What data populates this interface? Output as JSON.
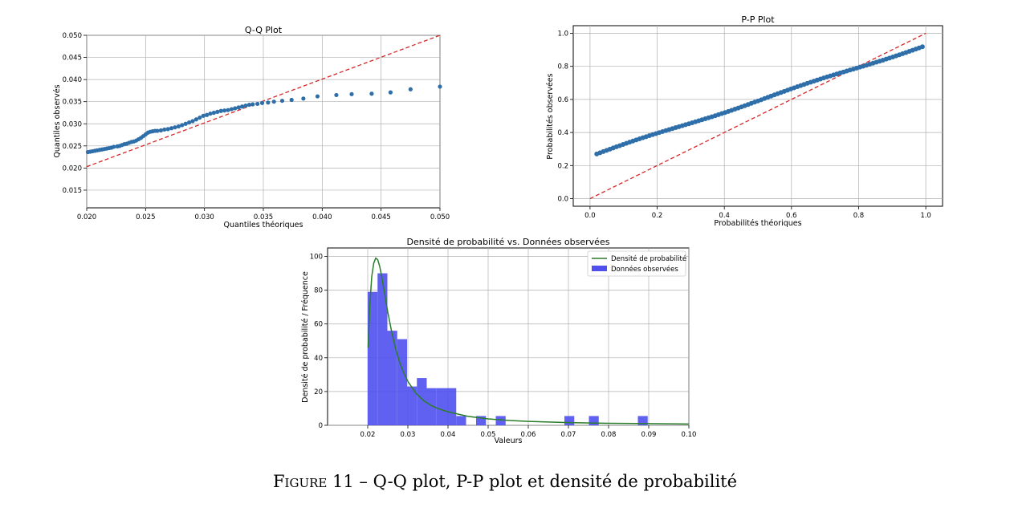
{
  "caption": {
    "label": "Figure 11",
    "separator": " – ",
    "text": "Q-Q plot, P-P plot et densité de probabilité"
  },
  "colors": {
    "points": "#2f6fa9",
    "reference_line": "#d62728",
    "histogram": "#5050ef",
    "density_curve": "#2a7d2a",
    "grid": "#b0b0b0"
  },
  "chart_data": [
    {
      "type": "scatter",
      "title": "Q-Q Plot",
      "xlabel": "Quantiles théoriques",
      "ylabel": "Quantiles observés",
      "xlim": [
        0.02,
        0.05
      ],
      "ylim": [
        0.011,
        0.05
      ],
      "xticks": [
        "0.020",
        "0.025",
        "0.030",
        "0.035",
        "0.040",
        "0.045",
        "0.050"
      ],
      "yticks": [
        "0.015",
        "0.020",
        "0.025",
        "0.030",
        "0.035",
        "0.040",
        "0.045",
        "0.050"
      ],
      "ytick_values": [
        0.015,
        0.02,
        0.025,
        0.03,
        0.035,
        0.04,
        0.045,
        0.05
      ],
      "grid": true,
      "reference_line": {
        "style": "dashed",
        "from": [
          0.02,
          0.0203
        ],
        "to": [
          0.05,
          0.05
        ]
      },
      "x": [
        0.0201,
        0.0203,
        0.0205,
        0.0207,
        0.0209,
        0.0211,
        0.0213,
        0.0215,
        0.0217,
        0.0219,
        0.0221,
        0.0223,
        0.0226,
        0.0228,
        0.023,
        0.0232,
        0.0234,
        0.0236,
        0.0238,
        0.024,
        0.0242,
        0.0244,
        0.0246,
        0.0248,
        0.025,
        0.0252,
        0.0254,
        0.0256,
        0.0258,
        0.026,
        0.0263,
        0.0266,
        0.0269,
        0.0272,
        0.0275,
        0.0278,
        0.0281,
        0.0284,
        0.0287,
        0.029,
        0.0293,
        0.0296,
        0.0299,
        0.0302,
        0.0305,
        0.0308,
        0.0311,
        0.0314,
        0.0317,
        0.032,
        0.0323,
        0.0326,
        0.0329,
        0.0332,
        0.0335,
        0.0338,
        0.0341,
        0.0345,
        0.0349,
        0.0354,
        0.0359,
        0.0366,
        0.0374,
        0.0384,
        0.0396,
        0.0412,
        0.0425,
        0.0442,
        0.0458,
        0.0475,
        0.05
      ],
      "y": [
        0.0236,
        0.0237,
        0.0238,
        0.0239,
        0.024,
        0.0241,
        0.0242,
        0.0243,
        0.0244,
        0.0245,
        0.0246,
        0.0248,
        0.0249,
        0.025,
        0.0252,
        0.0254,
        0.0255,
        0.0257,
        0.0259,
        0.026,
        0.0262,
        0.0265,
        0.0268,
        0.0272,
        0.0276,
        0.028,
        0.0282,
        0.0283,
        0.0284,
        0.0284,
        0.0285,
        0.0287,
        0.0288,
        0.029,
        0.0292,
        0.0294,
        0.0297,
        0.03,
        0.0303,
        0.0306,
        0.031,
        0.0314,
        0.0318,
        0.032,
        0.0323,
        0.0325,
        0.0327,
        0.0329,
        0.033,
        0.0331,
        0.0333,
        0.0335,
        0.0337,
        0.0339,
        0.0341,
        0.0343,
        0.0344,
        0.0345,
        0.0347,
        0.0348,
        0.035,
        0.0352,
        0.0354,
        0.0357,
        0.0362,
        0.0365,
        0.0367,
        0.0368,
        0.0371,
        0.0378,
        0.0384
      ]
    },
    {
      "type": "scatter",
      "title": "P-P Plot",
      "xlabel": "Probabilités théoriques",
      "ylabel": "Probabilités observées",
      "xlim": [
        -0.05,
        1.05
      ],
      "ylim": [
        -0.046,
        1.046
      ],
      "xticks": [
        "0.0",
        "0.2",
        "0.4",
        "0.6",
        "0.8",
        "1.0"
      ],
      "yticks": [
        "0.0",
        "0.2",
        "0.4",
        "0.6",
        "0.8",
        "1.0"
      ],
      "tick_values": [
        0,
        0.2,
        0.4,
        0.6,
        0.8,
        1.0
      ],
      "grid": true,
      "reference_line": {
        "style": "dashed",
        "from": [
          0,
          0
        ],
        "to": [
          1,
          1
        ]
      },
      "points": {
        "count": 100,
        "x_start": 0.02,
        "x_end": 0.99,
        "y_start": 0.27,
        "y_end": 0.922
      }
    },
    {
      "type": "bar",
      "title": "Densité de probabilité vs. Données observées",
      "xlabel": "Valeurs",
      "ylabel": "Densité de probabilité / Fréquence",
      "xlim": [
        0.01,
        0.1
      ],
      "ylim": [
        0,
        105
      ],
      "xticks": [
        "0.02",
        "0.03",
        "0.04",
        "0.05",
        "0.06",
        "0.07",
        "0.08",
        "0.09",
        "0.10"
      ],
      "yticks": [
        "0",
        "20",
        "40",
        "60",
        "80",
        "100"
      ],
      "xtick_values": [
        0.02,
        0.03,
        0.04,
        0.05,
        0.06,
        0.07,
        0.08,
        0.09,
        0.1
      ],
      "ytick_values": [
        0,
        20,
        40,
        60,
        80,
        100
      ],
      "grid": true,
      "legend": {
        "placement": "top-right",
        "entries": [
          "Densité de probabilité",
          "Données observées"
        ]
      },
      "bin_width": 0.00245,
      "bins": [
        {
          "x": 0.02,
          "value": 79
        },
        {
          "x": 0.02245,
          "value": 90
        },
        {
          "x": 0.0249,
          "value": 56
        },
        {
          "x": 0.02735,
          "value": 51
        },
        {
          "x": 0.0298,
          "value": 23
        },
        {
          "x": 0.03225,
          "value": 28
        },
        {
          "x": 0.0347,
          "value": 22
        },
        {
          "x": 0.03715,
          "value": 22
        },
        {
          "x": 0.0396,
          "value": 22
        },
        {
          "x": 0.04205,
          "value": 5.5
        },
        {
          "x": 0.047,
          "value": 5.5
        },
        {
          "x": 0.0519,
          "value": 5.5
        },
        {
          "x": 0.069,
          "value": 5.5
        },
        {
          "x": 0.0751,
          "value": 5.5
        },
        {
          "x": 0.0873,
          "value": 5.5
        }
      ],
      "density_curve": {
        "x": [
          0.0201,
          0.0205,
          0.021,
          0.0215,
          0.022,
          0.0225,
          0.023,
          0.0235,
          0.024,
          0.025,
          0.026,
          0.027,
          0.028,
          0.029,
          0.03,
          0.032,
          0.034,
          0.036,
          0.038,
          0.04,
          0.045,
          0.05,
          0.055,
          0.06,
          0.07,
          0.08,
          0.09,
          0.1
        ],
        "y": [
          46,
          70,
          88,
          96,
          99,
          98,
          94,
          88,
          81,
          67,
          55,
          45,
          37,
          31,
          26,
          19,
          14.5,
          11.5,
          9.5,
          8,
          5.3,
          3.8,
          2.9,
          2.3,
          1.6,
          1.2,
          1.0,
          0.8
        ]
      }
    }
  ]
}
